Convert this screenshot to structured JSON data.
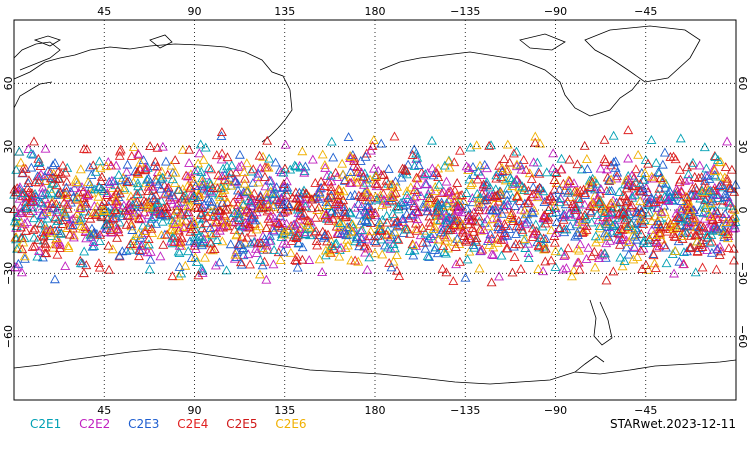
{
  "map": {
    "x_tick_labels": [
      "45",
      "90",
      "135",
      "180",
      "−135",
      "−90",
      "−45"
    ],
    "y_tick_labels_left": [
      "60",
      "30",
      "0",
      "−30",
      "−60"
    ],
    "y_tick_labels_right": [
      "60",
      "30",
      "0",
      "−30",
      "−60"
    ],
    "projection": "equirectangular",
    "lon_range": [
      0,
      360
    ],
    "lat_range": [
      -90,
      90
    ],
    "marker": "triangle",
    "observation_lat_band": [
      -40,
      40
    ]
  },
  "legend": [
    {
      "label": "C2E1",
      "color": "#00a0b4"
    },
    {
      "label": "C2E2",
      "color": "#c020c0"
    },
    {
      "label": "C2E3",
      "color": "#1f5fd0"
    },
    {
      "label": "C2E4",
      "color": "#e02020"
    },
    {
      "label": "C2E5",
      "color": "#d01818"
    },
    {
      "label": "C2E6",
      "color": "#f0b000"
    }
  ],
  "caption": "STARwet.2023-12-11"
}
